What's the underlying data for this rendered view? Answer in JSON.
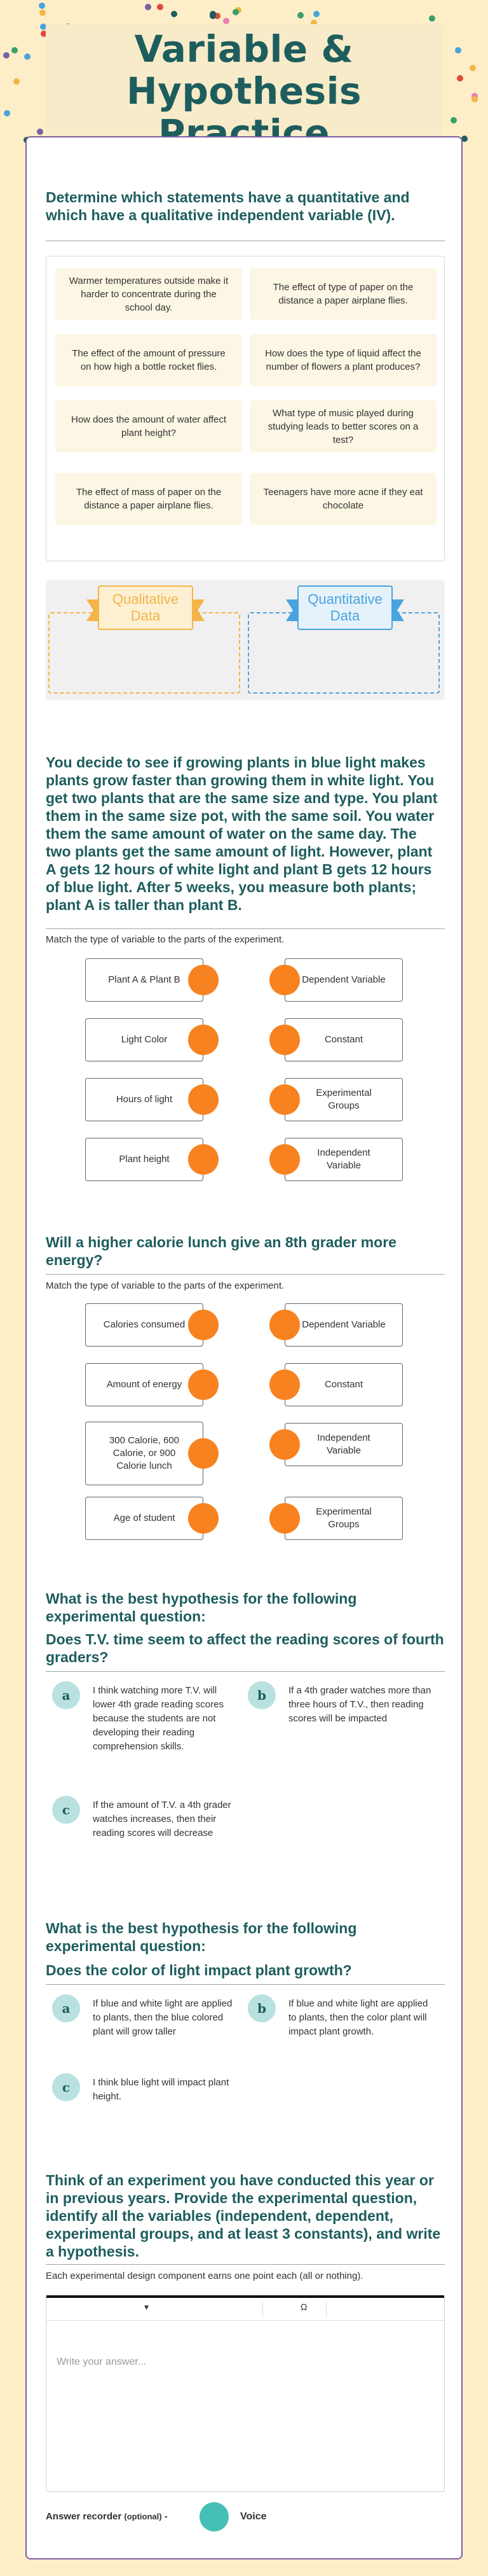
{
  "page": {
    "title": "Variable & Hypothesis Practice",
    "title_lines": [
      "Variable &",
      "Hypothesis",
      "Practice"
    ]
  },
  "q1": {
    "title": "Determine which statements have a quantitative and which have a qualitative independent variable (IV).",
    "items": [
      "Warmer temperatures outside make it harder to concentrate during the school day.",
      "The effect of type of paper on the distance a paper airplane flies.",
      "The effect of the amount of pressure on how high a bottle rocket flies.",
      "How does the type of liquid affect the number of flowers a plant produces?",
      "How does the amount of water affect plant height?",
      "What type of music played during studying leads to better scores on a test?",
      "The effect of mass of paper on the distance a paper airplane flies.",
      "Teenagers have more acne if they eat chocolate"
    ],
    "buckets": [
      "Qualitative Data",
      "Quantitative Data"
    ],
    "colors": {
      "qualitative": "#f3b547",
      "quantitative": "#4aa3dd"
    }
  },
  "q2": {
    "title": "You decide to see if growing plants in blue light makes plants grow faster than growing them in white light. You get two plants that are the same size and type. You plant them in the same size pot, with the same soil. You water them the same amount of water on the same day. The two plants get the same amount of light. However, plant A gets 12 hours of white light and plant B gets 12 hours of blue light. After 5 weeks, you measure both plants; plant A is taller than plant B.",
    "instruction": "Match the type of variable to the parts of the experiment.",
    "left": [
      "Plant A & Plant B",
      "Light Color",
      "Hours of light",
      "Plant height"
    ],
    "right": [
      "Dependent Variable",
      "Constant",
      "Experimental Groups",
      "Independent Variable"
    ]
  },
  "q3": {
    "title": "Will a higher calorie lunch give an 8th grader more energy?",
    "instruction": "Match the type of variable to the parts of the experiment.",
    "left": [
      "Calories consumed",
      "Amount of energy",
      "300 Calorie, 600 Calorie, or 900 Calorie lunch",
      "Age of student"
    ],
    "right": [
      "Dependent Variable",
      "Constant",
      "Independent Variable",
      "Experimental Groups"
    ]
  },
  "q4": {
    "title": "What is the best hypothesis for the following experimental question:",
    "subtitle": "Does T.V. time seem to affect the reading scores of fourth graders?",
    "options": [
      {
        "letter": "a",
        "text": "I think watching more T.V. will lower 4th grade reading scores because the students are not developing their reading comprehension skills."
      },
      {
        "letter": "b",
        "text": "If a 4th grader watches more than three hours of T.V., then reading scores will be impacted"
      },
      {
        "letter": "c",
        "text": "If the amount of T.V. a 4th grader watches increases, then their reading scores will decrease"
      }
    ]
  },
  "q5": {
    "title": "What is the best hypothesis for the following experimental question:",
    "subtitle": "Does the color of light impact plant growth?",
    "options": [
      {
        "letter": "a",
        "text": "If blue and white light are applied to plants, then the blue colored plant will grow taller"
      },
      {
        "letter": "b",
        "text": "If blue and white light are applied to plants, then the color plant will impact plant growth."
      },
      {
        "letter": "c",
        "text": "I think blue light will impact plant height."
      }
    ]
  },
  "q6": {
    "title": "Think of an experiment you have conducted this year or in previous years. Provide the experimental question, identify all the variables (independent, dependent, experimental groups, and at least 3 constants), and write a hypothesis.",
    "instruction": "Each experimental design component earns one point each (all or nothing).",
    "toolbar": {
      "dropdown": "▾",
      "omega": "Ω"
    },
    "placeholder": "Write your answer...",
    "recorder_label": "Answer recorder",
    "recorder_optional": "(optional)",
    "recorder_separator": "-",
    "voice_label": "Voice"
  },
  "colors": {
    "accent": "#1e5d5d",
    "knob": "#f7821f",
    "badge": "#b9e1df",
    "border": "#7b5fa3",
    "voice": "#46c0b6"
  }
}
